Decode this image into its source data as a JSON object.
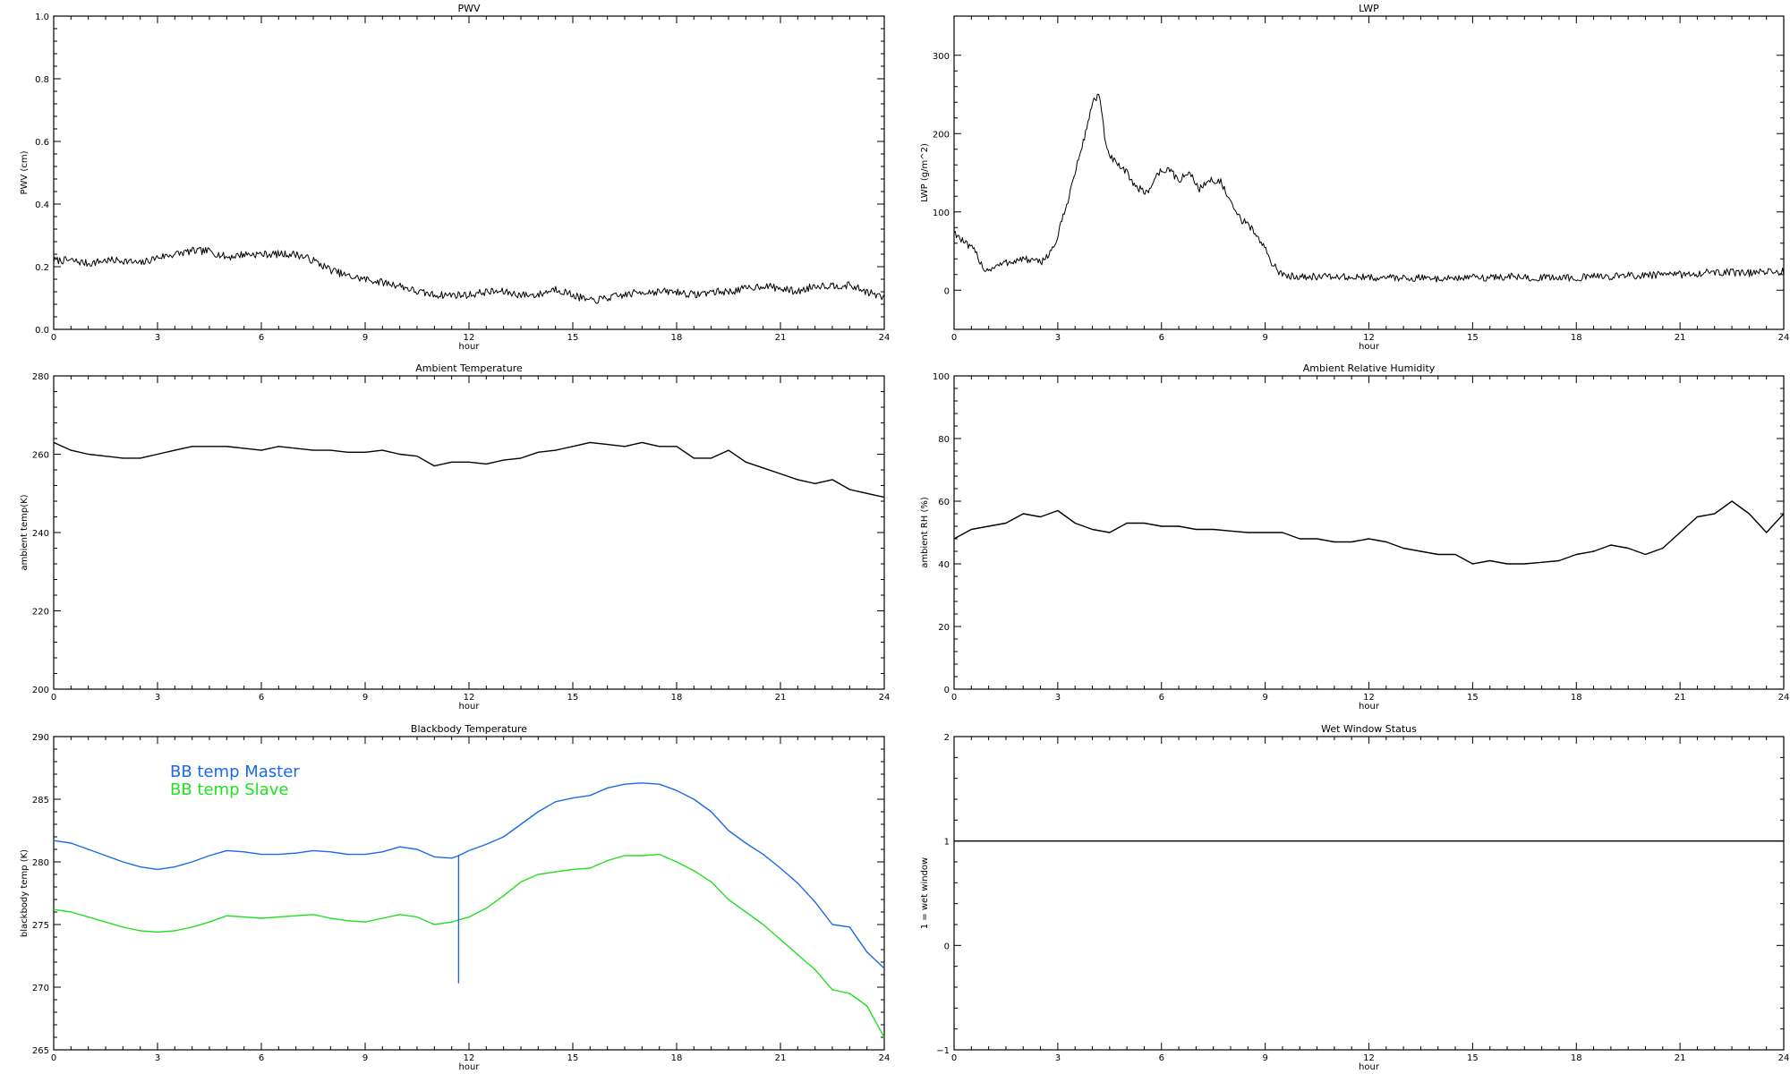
{
  "figure": {
    "xlabel_common": "hour"
  },
  "chart_data": [
    {
      "id": "pwv",
      "type": "line",
      "title": "PWV",
      "xlabel": "hour",
      "ylabel": "PWV (cm)",
      "xlim": [
        0,
        24
      ],
      "ylim": [
        0,
        1
      ],
      "xticks": [
        0,
        3,
        6,
        9,
        12,
        15,
        18,
        21,
        24
      ],
      "yticks": [
        "0.0",
        "0.2",
        "0.4",
        "0.6",
        "0.8",
        "1.0"
      ],
      "grid": false,
      "series": [
        {
          "color": "#000000",
          "style": "noisy",
          "x": [
            0,
            0.5,
            1,
            1.5,
            2,
            2.5,
            3,
            3.5,
            4,
            4.5,
            5,
            5.5,
            6,
            6.5,
            7,
            7.5,
            8,
            8.5,
            9,
            9.5,
            10,
            10.5,
            11,
            11.5,
            12,
            12.5,
            13,
            13.5,
            14,
            14.5,
            15,
            15.5,
            16,
            16.5,
            17,
            17.5,
            18,
            18.5,
            19,
            19.5,
            20,
            20.5,
            21,
            21.5,
            22,
            22.5,
            23,
            23.5,
            24
          ],
          "y": [
            0.22,
            0.22,
            0.21,
            0.22,
            0.22,
            0.21,
            0.23,
            0.24,
            0.25,
            0.25,
            0.23,
            0.24,
            0.24,
            0.24,
            0.24,
            0.22,
            0.19,
            0.17,
            0.16,
            0.15,
            0.14,
            0.12,
            0.11,
            0.11,
            0.11,
            0.12,
            0.12,
            0.11,
            0.11,
            0.13,
            0.11,
            0.09,
            0.1,
            0.11,
            0.12,
            0.12,
            0.12,
            0.11,
            0.12,
            0.12,
            0.13,
            0.14,
            0.13,
            0.12,
            0.14,
            0.14,
            0.14,
            0.12,
            0.1
          ]
        }
      ]
    },
    {
      "id": "lwp",
      "type": "line",
      "title": "LWP",
      "xlabel": "hour",
      "ylabel": "LWP (g/m^2)",
      "xlim": [
        0,
        24
      ],
      "ylim": [
        -50,
        350
      ],
      "xticks": [
        0,
        3,
        6,
        9,
        12,
        15,
        18,
        21,
        24
      ],
      "yticks": [
        "0",
        "100",
        "200",
        "300"
      ],
      "grid": false,
      "series": [
        {
          "color": "#000000",
          "style": "noisy",
          "x": [
            0,
            0.3,
            0.6,
            0.9,
            1.2,
            1.5,
            2,
            2.5,
            2.9,
            3.2,
            3.5,
            3.8,
            4,
            4.2,
            4.4,
            4.7,
            5,
            5.3,
            5.6,
            5.9,
            6.2,
            6.5,
            6.8,
            7.1,
            7.4,
            7.7,
            8,
            8.3,
            8.6,
            8.9,
            9.2,
            9.5,
            10,
            11,
            12,
            13,
            14,
            15,
            16,
            17,
            18,
            19,
            20,
            21,
            22,
            23,
            24
          ],
          "y": [
            75,
            60,
            50,
            25,
            30,
            35,
            40,
            35,
            55,
            100,
            150,
            200,
            240,
            250,
            180,
            160,
            150,
            130,
            125,
            150,
            155,
            140,
            150,
            130,
            140,
            140,
            110,
            90,
            80,
            60,
            35,
            18,
            18,
            17,
            16,
            16,
            15,
            16,
            17,
            16,
            16,
            18,
            19,
            20,
            23,
            22,
            24
          ]
        }
      ]
    },
    {
      "id": "ambient_temp",
      "type": "line",
      "title": "Ambient Temperature",
      "xlabel": "hour",
      "ylabel": "ambient temp(K)",
      "xlim": [
        0,
        24
      ],
      "ylim": [
        200,
        280
      ],
      "xticks": [
        0,
        3,
        6,
        9,
        12,
        15,
        18,
        21,
        24
      ],
      "yticks": [
        "200",
        "220",
        "240",
        "260",
        "280"
      ],
      "grid": false,
      "series": [
        {
          "color": "#000000",
          "style": "smooth",
          "x": [
            0,
            0.5,
            1,
            1.5,
            2,
            2.5,
            3,
            3.5,
            4,
            4.5,
            5,
            5.5,
            6,
            6.5,
            7,
            7.5,
            8,
            8.5,
            9,
            9.5,
            10,
            10.5,
            11,
            11.5,
            12,
            12.5,
            13,
            13.5,
            14,
            14.5,
            15,
            15.5,
            16,
            16.5,
            17,
            17.5,
            18,
            18.5,
            19,
            19.5,
            20,
            20.5,
            21,
            21.5,
            22,
            22.5,
            23,
            23.5,
            24
          ],
          "y": [
            263,
            261,
            260,
            259.5,
            259,
            259,
            260,
            261,
            262,
            262,
            262,
            261.5,
            261,
            262,
            261.5,
            261,
            261,
            260.5,
            260.5,
            261,
            260,
            259.5,
            257,
            258,
            258,
            257.5,
            258.5,
            259,
            260.5,
            261,
            262,
            263,
            262.5,
            262,
            263,
            262,
            262,
            259,
            259,
            261,
            258,
            256.5,
            255,
            253.5,
            252.5,
            253.5,
            251,
            250,
            249
          ]
        }
      ]
    },
    {
      "id": "ambient_rh",
      "type": "line",
      "title": "Ambient Relative Humidity",
      "xlabel": "hour",
      "ylabel": "ambient RH (%)",
      "xlim": [
        0,
        24
      ],
      "ylim": [
        0,
        100
      ],
      "xticks": [
        0,
        3,
        6,
        9,
        12,
        15,
        18,
        21,
        24
      ],
      "yticks": [
        "0",
        "20",
        "40",
        "60",
        "80",
        "100"
      ],
      "grid": false,
      "series": [
        {
          "color": "#000000",
          "style": "smooth",
          "x": [
            0,
            0.5,
            1,
            1.5,
            2,
            2.5,
            3,
            3.5,
            4,
            4.5,
            5,
            5.5,
            6,
            6.5,
            7,
            7.5,
            8,
            8.5,
            9,
            9.5,
            10,
            10.5,
            11,
            11.5,
            12,
            12.5,
            13,
            13.5,
            14,
            14.5,
            15,
            15.5,
            16,
            16.5,
            17,
            17.5,
            18,
            18.5,
            19,
            19.5,
            20,
            20.5,
            21,
            21.5,
            22,
            22.5,
            23,
            23.5,
            24
          ],
          "y": [
            48,
            51,
            52,
            53,
            56,
            55,
            57,
            53,
            51,
            50,
            53,
            53,
            52,
            52,
            51,
            51,
            50.5,
            50,
            50,
            50,
            48,
            48,
            47,
            47,
            48,
            47,
            45,
            44,
            43,
            43,
            40,
            41,
            40,
            40,
            40.5,
            41,
            43,
            44,
            46,
            45,
            43,
            45,
            50,
            55,
            56,
            60,
            56,
            50,
            56
          ]
        }
      ]
    },
    {
      "id": "bb_temp",
      "type": "line",
      "title": "Blackbody Temperature",
      "xlabel": "hour",
      "ylabel": "blackbody temp (K)",
      "xlim": [
        0,
        24
      ],
      "ylim": [
        265,
        290
      ],
      "xticks": [
        0,
        3,
        6,
        9,
        12,
        15,
        18,
        21,
        24
      ],
      "yticks": [
        "265",
        "270",
        "275",
        "280",
        "285",
        "290"
      ],
      "grid": false,
      "legend": [
        {
          "label": "BB temp Master",
          "color": "#1a6ae8"
        },
        {
          "label": "BB temp Slave",
          "color": "#22e022"
        }
      ],
      "series": [
        {
          "name": "BB temp Master",
          "color": "#1a6ae8",
          "style": "smooth",
          "x": [
            0,
            0.5,
            1,
            1.5,
            2,
            2.5,
            3,
            3.5,
            4,
            4.5,
            5,
            5.5,
            6,
            6.5,
            7,
            7.5,
            8,
            8.5,
            9,
            9.5,
            10,
            10.5,
            11,
            11.5,
            11.7,
            12,
            12.5,
            13,
            13.5,
            14,
            14.5,
            15,
            15.5,
            16,
            16.5,
            17,
            17.5,
            18,
            18.5,
            19,
            19.5,
            20,
            20.5,
            21,
            21.5,
            22,
            22.5,
            23,
            23.5,
            24
          ],
          "y": [
            281.7,
            281.5,
            281,
            280.5,
            280,
            279.6,
            279.4,
            279.6,
            280,
            280.5,
            280.9,
            280.8,
            280.6,
            280.6,
            280.7,
            280.9,
            280.8,
            280.6,
            280.6,
            280.8,
            281.2,
            281,
            280.4,
            280.3,
            280.5,
            280.9,
            281.4,
            282,
            283,
            284,
            284.8,
            285.1,
            285.3,
            285.9,
            286.2,
            286.3,
            286.2,
            285.7,
            285,
            284,
            282.5,
            281.5,
            280.6,
            279.5,
            278.3,
            276.8,
            275,
            274.8,
            272.8,
            271.5
          ]
        },
        {
          "name": "BB temp Slave",
          "color": "#22e022",
          "style": "smooth",
          "x": [
            0,
            0.5,
            1,
            1.5,
            2,
            2.5,
            3,
            3.5,
            4,
            4.5,
            5,
            5.5,
            6,
            6.5,
            7,
            7.5,
            8,
            8.5,
            9,
            9.5,
            10,
            10.5,
            11,
            11.5,
            12,
            12.5,
            13,
            13.5,
            14,
            14.5,
            15,
            15.5,
            16,
            16.5,
            17,
            17.5,
            18,
            18.5,
            19,
            19.5,
            20,
            20.5,
            21,
            21.5,
            22,
            22.5,
            23,
            23.5,
            24
          ],
          "y": [
            276.2,
            276,
            275.6,
            275.2,
            274.8,
            274.5,
            274.4,
            274.5,
            274.8,
            275.2,
            275.7,
            275.6,
            275.5,
            275.6,
            275.7,
            275.8,
            275.5,
            275.3,
            275.2,
            275.5,
            275.8,
            275.6,
            275,
            275.2,
            275.6,
            276.3,
            277.3,
            278.4,
            279,
            279.2,
            279.4,
            279.5,
            280.1,
            280.5,
            280.5,
            280.6,
            280,
            279.3,
            278.4,
            277,
            276,
            275,
            273.8,
            272.6,
            271.4,
            269.8,
            269.5,
            268.5,
            266
          ]
        }
      ],
      "spike": {
        "x": 11.7,
        "y_top": 280.5,
        "y_bottom": 270.3,
        "color": "#1a6ae8"
      }
    },
    {
      "id": "wet_window",
      "type": "line",
      "title": "Wet Window Status",
      "xlabel": "hour",
      "ylabel": "1 = wet window",
      "xlim": [
        0,
        24
      ],
      "ylim": [
        -1,
        2
      ],
      "xticks": [
        0,
        3,
        6,
        9,
        12,
        15,
        18,
        21,
        24
      ],
      "yticks": [
        "−1",
        "0",
        "1",
        "2"
      ],
      "grid": false,
      "series": [
        {
          "color": "#000000",
          "style": "smooth",
          "x": [
            0,
            24
          ],
          "y": [
            1,
            1
          ]
        }
      ]
    }
  ]
}
